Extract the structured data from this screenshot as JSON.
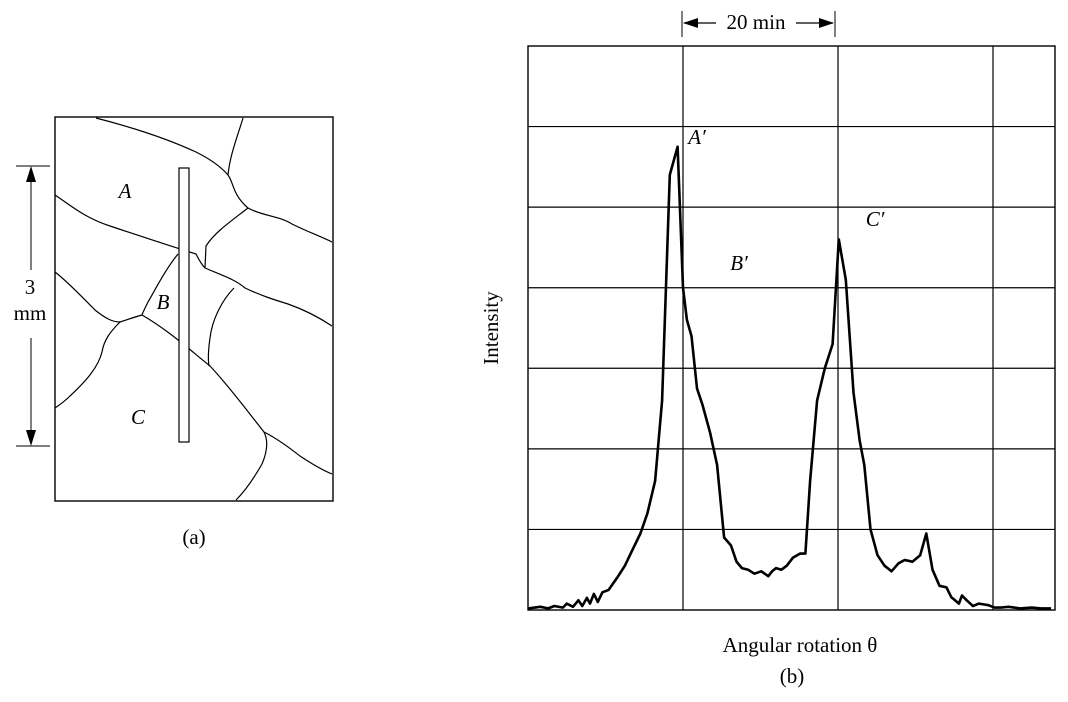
{
  "panel_a": {
    "grain_labels": {
      "a": "A",
      "b": "B",
      "c": "C"
    },
    "dimension": {
      "value": "3",
      "unit": "mm"
    },
    "caption": "(a)"
  },
  "panel_b": {
    "scale_bar": "20 min",
    "ylabel": "Intensity",
    "xlabel": "Angular rotation θ",
    "caption": "(b)",
    "peak_labels": {
      "a": "A′",
      "b": "B′",
      "c": "C′"
    }
  },
  "chart_data": {
    "type": "line",
    "title": "",
    "xlabel": "Angular rotation θ",
    "ylabel": "Intensity",
    "x_unit": "min",
    "xlim": [
      0,
      68
    ],
    "ylim": [
      0,
      7
    ],
    "grid": true,
    "series": [
      {
        "x": [
          0,
          1.6,
          2.6,
          3.4,
          4.5,
          5.0,
          5.8,
          6.5,
          7.0,
          7.6,
          8.0,
          8.5,
          9.0,
          9.6,
          10.4,
          11.5,
          12.5,
          13.5,
          14.5,
          15.4,
          16.4,
          17.3,
          18.3,
          19.3,
          20.0,
          20.5,
          21.1,
          21.8,
          22.5,
          23.5,
          24.4,
          25.3,
          26.2,
          26.9,
          27.6,
          28.4,
          29.2,
          30.1,
          31.0,
          31.5,
          32.0,
          32.7,
          33.4,
          34.2,
          35.1,
          35.8,
          36.4,
          37.3,
          38.3,
          39.3,
          40.1,
          41.0,
          42.0,
          42.8,
          43.4,
          44.2,
          45.1,
          46.0,
          46.9,
          47.8,
          48.6,
          49.6,
          50.6,
          51.4,
          52.2,
          53.1,
          54.0,
          54.6,
          55.1,
          55.6,
          56.0,
          56.6,
          57.4,
          58.2,
          59.4,
          60.2,
          61.0,
          62.0,
          63.5,
          65.0,
          66.2,
          67.5
        ],
        "y": [
          0.02,
          0.04,
          0.02,
          0.05,
          0.03,
          0.08,
          0.04,
          0.12,
          0.05,
          0.15,
          0.08,
          0.2,
          0.1,
          0.22,
          0.25,
          0.4,
          0.55,
          0.75,
          0.95,
          1.2,
          1.6,
          2.6,
          5.4,
          5.75,
          4.0,
          3.6,
          3.4,
          2.75,
          2.55,
          2.2,
          1.8,
          0.9,
          0.8,
          0.6,
          0.52,
          0.5,
          0.45,
          0.48,
          0.42,
          0.48,
          0.52,
          0.5,
          0.55,
          0.65,
          0.7,
          0.7,
          1.6,
          2.6,
          3.0,
          3.3,
          4.6,
          4.1,
          2.7,
          2.1,
          1.8,
          1.0,
          0.68,
          0.55,
          0.48,
          0.58,
          0.62,
          0.6,
          0.68,
          0.95,
          0.5,
          0.3,
          0.28,
          0.16,
          0.12,
          0.08,
          0.18,
          0.12,
          0.05,
          0.08,
          0.06,
          0.03,
          0.03,
          0.04,
          0.02,
          0.03,
          0.02,
          0.02
        ]
      }
    ]
  }
}
